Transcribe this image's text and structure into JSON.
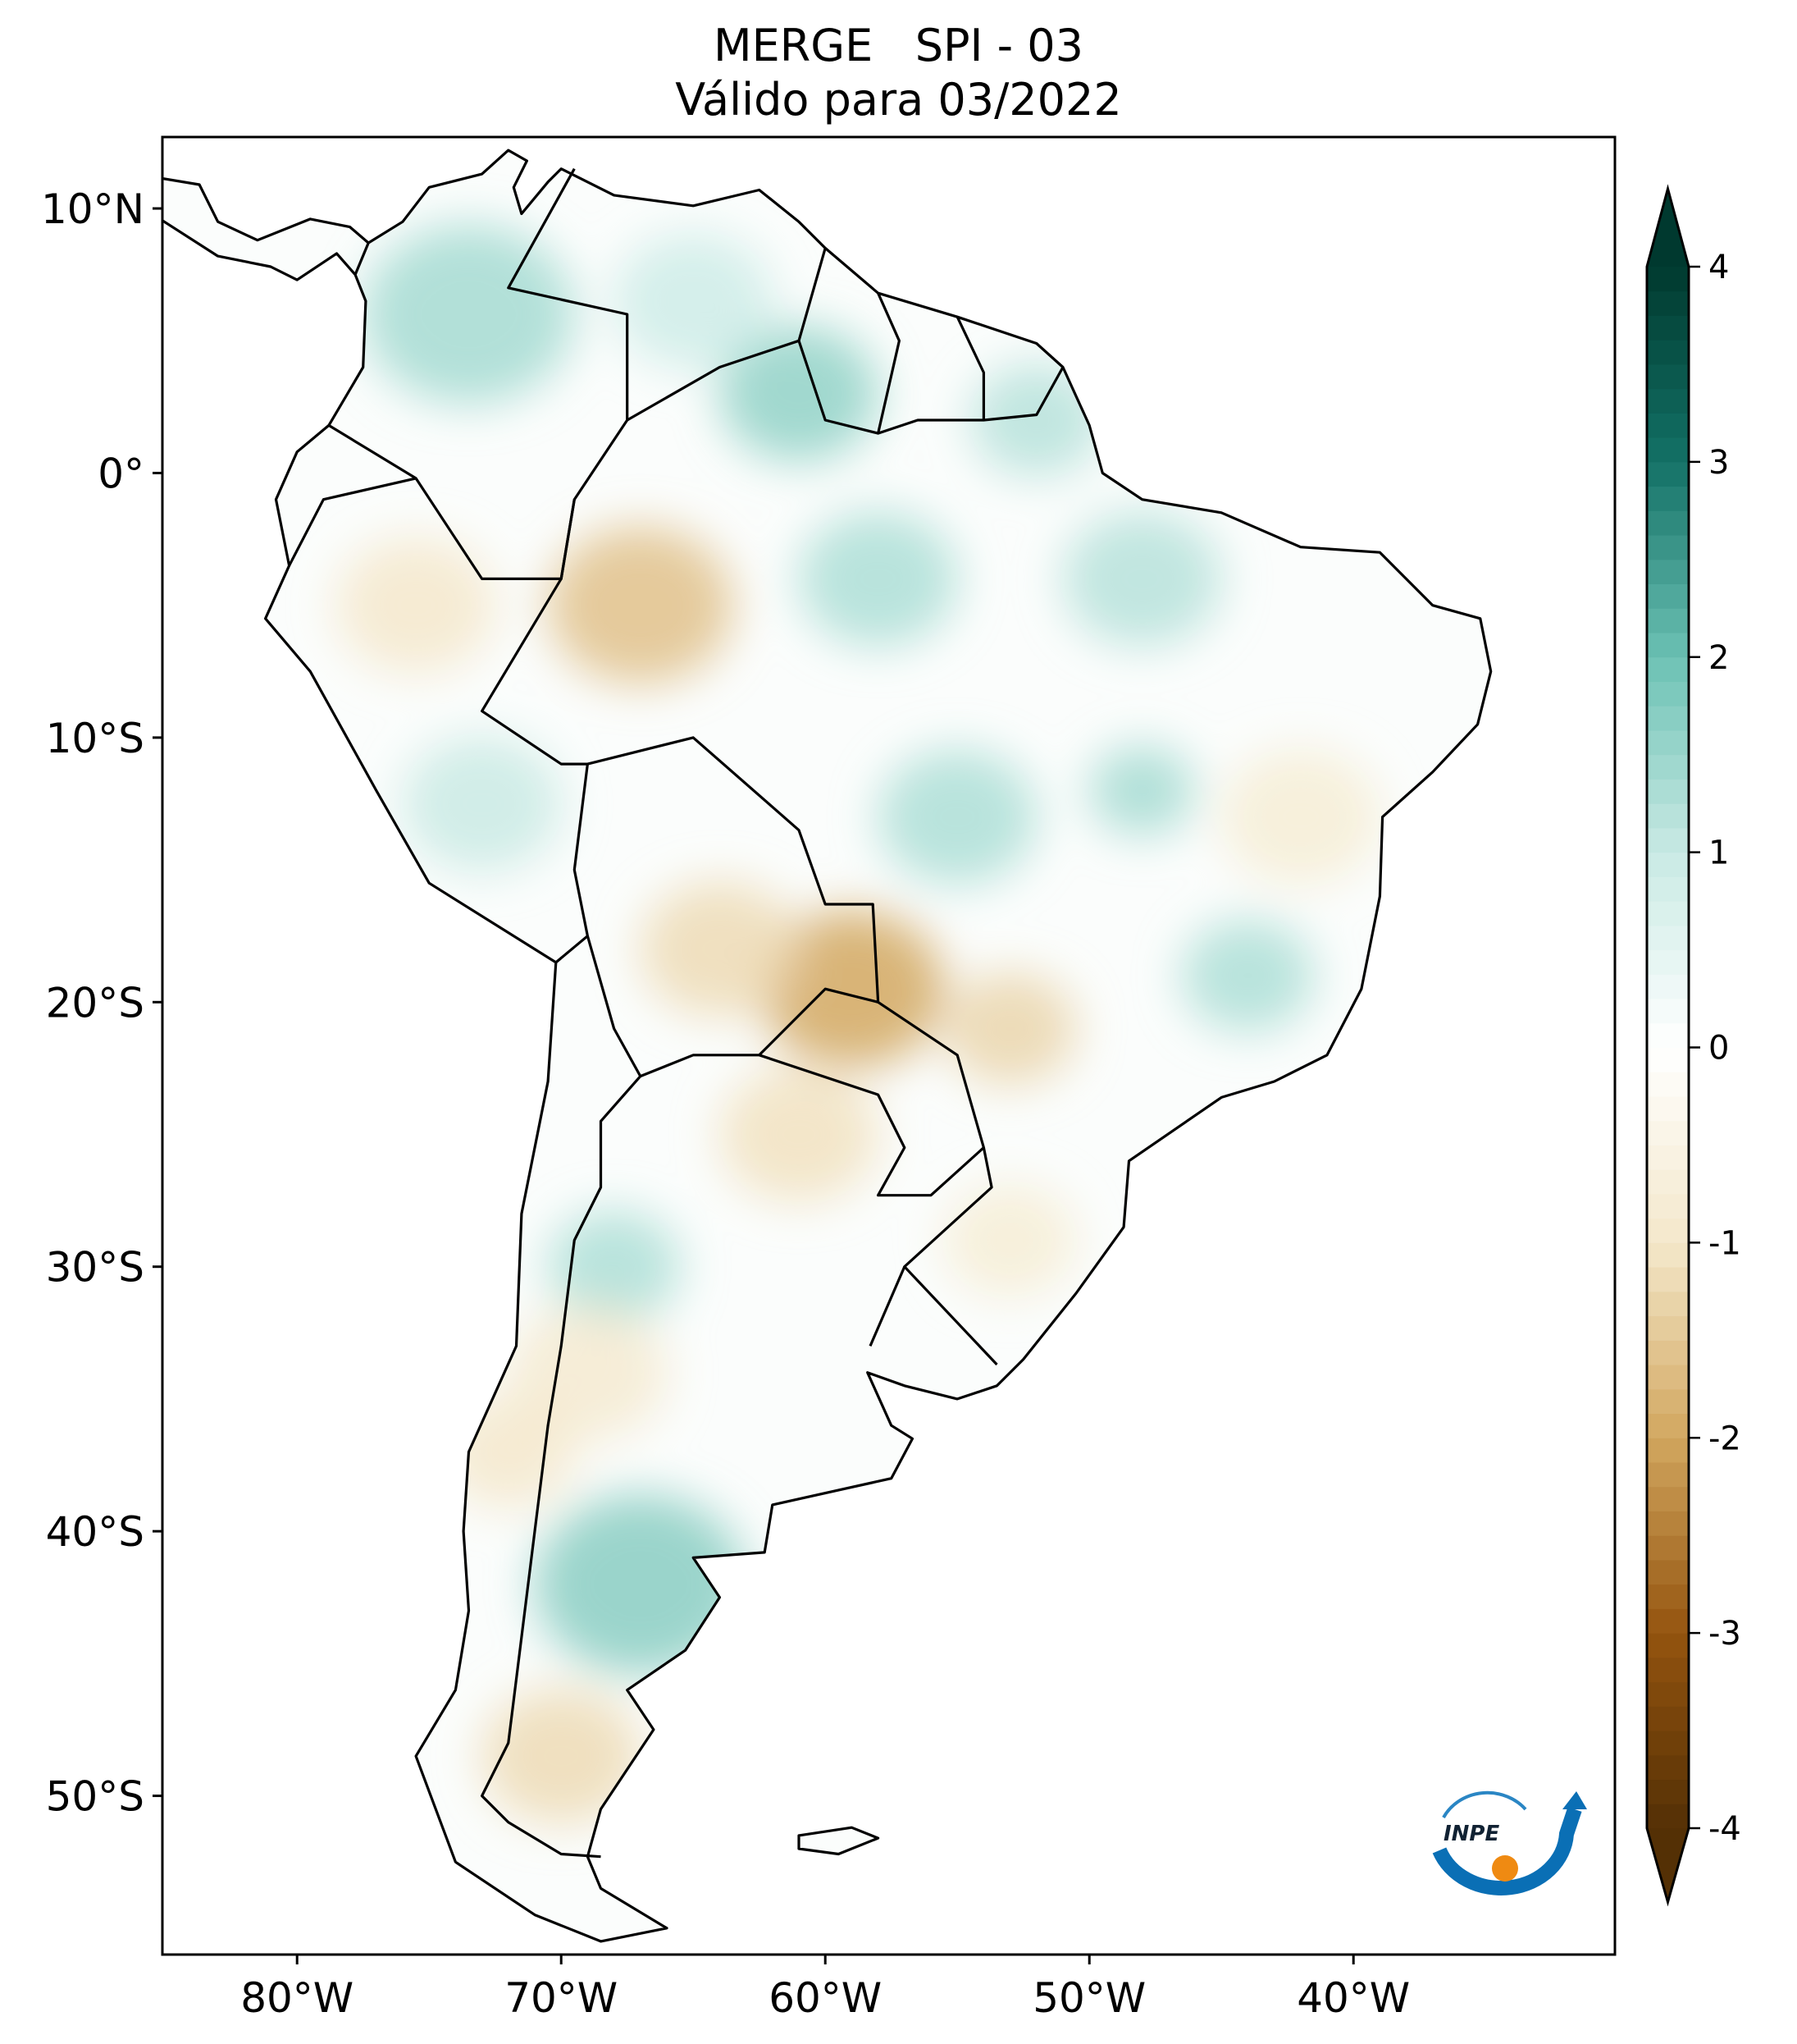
{
  "title": {
    "line1": "MERGE   SPI - 03",
    "line2": "Válido para 03/2022"
  },
  "chart_data": {
    "type": "heatmap",
    "variable": "SPI - 03",
    "extent": {
      "lon": [
        -85.1,
        -30.1
      ],
      "lat": [
        -56.0,
        12.7
      ]
    },
    "xticks": [
      {
        "value": -80,
        "label": "80°W"
      },
      {
        "value": -70,
        "label": "70°W"
      },
      {
        "value": -60,
        "label": "60°W"
      },
      {
        "value": -50,
        "label": "50°W"
      },
      {
        "value": -40,
        "label": "40°W"
      }
    ],
    "yticks": [
      {
        "value": 10,
        "label": "10°N"
      },
      {
        "value": 0,
        "label": "0°"
      },
      {
        "value": -10,
        "label": "10°S"
      },
      {
        "value": -20,
        "label": "20°S"
      },
      {
        "value": -30,
        "label": "30°S"
      },
      {
        "value": -40,
        "label": "40°S"
      },
      {
        "value": -50,
        "label": "50°S"
      }
    ],
    "colorbar": {
      "range": [
        -4,
        4
      ],
      "extend": "both",
      "ticks": [
        {
          "value": 4,
          "label": "4"
        },
        {
          "value": 3,
          "label": "3"
        },
        {
          "value": 2,
          "label": "2"
        },
        {
          "value": 1,
          "label": "1"
        },
        {
          "value": 0,
          "label": "0"
        },
        {
          "value": -1,
          "label": "-1"
        },
        {
          "value": -2,
          "label": "-2"
        },
        {
          "value": -3,
          "label": "-3"
        },
        {
          "value": -4,
          "label": "-4"
        }
      ],
      "colormap": [
        {
          "value": -4,
          "color": "#543005"
        },
        {
          "value": -3,
          "color": "#94540f"
        },
        {
          "value": -2,
          "color": "#d2a75f"
        },
        {
          "value": -1,
          "color": "#f4e8cb"
        },
        {
          "value": 0,
          "color": "#ffffff"
        },
        {
          "value": 1,
          "color": "#c9eae4"
        },
        {
          "value": 2,
          "color": "#6cc1b4"
        },
        {
          "value": 3,
          "color": "#137166"
        },
        {
          "value": 4,
          "color": "#00392f"
        }
      ]
    },
    "anomalies": [
      {
        "lon": -73.5,
        "lat": 6,
        "spi": 1.4,
        "r": 4
      },
      {
        "lon": -61,
        "lat": 3,
        "spi": 1.6,
        "r": 3
      },
      {
        "lon": -65,
        "lat": 6.5,
        "spi": 0.9,
        "r": 3
      },
      {
        "lon": -52,
        "lat": 2,
        "spi": 1.2,
        "r": 2.5
      },
      {
        "lon": -67,
        "lat": -5,
        "spi": -1.6,
        "r": 3.5
      },
      {
        "lon": -75.5,
        "lat": -5,
        "spi": -1.0,
        "r": 3
      },
      {
        "lon": -58,
        "lat": -4,
        "spi": 1.3,
        "r": 3
      },
      {
        "lon": -48,
        "lat": -4,
        "spi": 1.2,
        "r": 3
      },
      {
        "lon": -73,
        "lat": -12.5,
        "spi": 1.0,
        "r": 3
      },
      {
        "lon": -55,
        "lat": -13,
        "spi": 1.3,
        "r": 3
      },
      {
        "lon": -48,
        "lat": -12,
        "spi": 1.4,
        "r": 2
      },
      {
        "lon": -42,
        "lat": -13,
        "spi": -0.8,
        "r": 3
      },
      {
        "lon": -59,
        "lat": -19.5,
        "spi": -2.0,
        "r": 3.5
      },
      {
        "lon": -64,
        "lat": -18,
        "spi": -1.2,
        "r": 3
      },
      {
        "lon": -53,
        "lat": -21,
        "spi": -1.3,
        "r": 2.5
      },
      {
        "lon": -44,
        "lat": -19,
        "spi": 1.3,
        "r": 2.5
      },
      {
        "lon": -61,
        "lat": -25,
        "spi": -1.1,
        "r": 3
      },
      {
        "lon": -68,
        "lat": -30,
        "spi": 1.3,
        "r": 2.5
      },
      {
        "lon": -69,
        "lat": -34,
        "spi": -0.9,
        "r": 3
      },
      {
        "lon": -67,
        "lat": -42,
        "spi": 1.7,
        "r": 4
      },
      {
        "lon": -70,
        "lat": -48.5,
        "spi": -1.2,
        "r": 3
      },
      {
        "lon": -72,
        "lat": -37,
        "spi": -1.0,
        "r": 2.5
      },
      {
        "lon": -53,
        "lat": -29,
        "spi": -0.8,
        "r": 2.5
      }
    ]
  },
  "logo": {
    "text": "INPE"
  }
}
